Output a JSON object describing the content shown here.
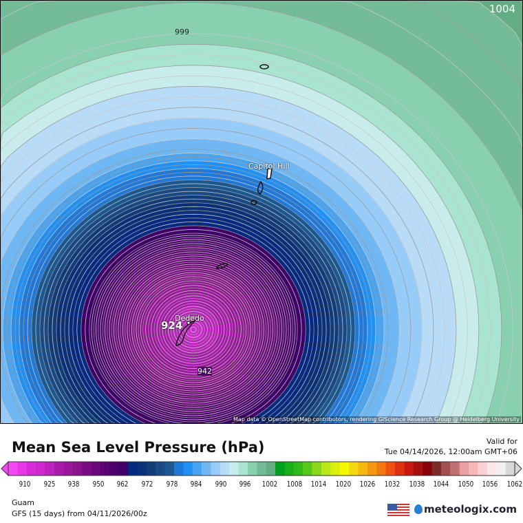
{
  "map": {
    "region": "Guam",
    "center_label": "924",
    "contour_labels": [
      {
        "text": "999"
      },
      {
        "text": "1004"
      },
      {
        "text": "942"
      }
    ],
    "places": [
      {
        "name": "Capitol Hill"
      },
      {
        "name": "Dededo"
      }
    ],
    "attribution": "Map data © OpenStreetMap contributors, rendering GIScience Research Group @ Heidelberg University"
  },
  "header": {
    "title": "Mean Sea Level Pressure (hPa)",
    "valid_label": "Valid for",
    "valid_time": "Tue 04/14/2026, 12:00am GMT+06"
  },
  "colorbar": {
    "ticks": [
      "910",
      "925",
      "938",
      "950",
      "962",
      "972",
      "978",
      "984",
      "990",
      "996",
      "1002",
      "1008",
      "1014",
      "1020",
      "1026",
      "1032",
      "1038",
      "1044",
      "1050",
      "1056",
      "1062"
    ],
    "colors": [
      "#f448f4",
      "#e836e8",
      "#d82ad8",
      "#cc28cc",
      "#bc22bc",
      "#aa1aaa",
      "#9a169a",
      "#8a128a",
      "#7a0c82",
      "#6a087a",
      "#5a0472",
      "#4c006c",
      "#400068",
      "#062a82",
      "#0a3078",
      "#123c78",
      "#1a4a84",
      "#1c5890",
      "#2078d8",
      "#2090f4",
      "#48a4f0",
      "#70b8f4",
      "#98ccf8",
      "#b8dcf8",
      "#c8ecec",
      "#a8e4d0",
      "#88d0b0",
      "#74bc98",
      "#64ac84",
      "#00a020",
      "#18b018",
      "#30bc18",
      "#58c818",
      "#88d818",
      "#b8e818",
      "#dcf010",
      "#f4f800",
      "#f4d810",
      "#f4b810",
      "#f49810",
      "#f47810",
      "#f05010",
      "#e03010",
      "#c81810",
      "#a81010",
      "#880008",
      "#7c2a2a",
      "#a05050",
      "#c07070",
      "#e8a0a0",
      "#f8b8b8",
      "#fcd0d0",
      "#fce8e8",
      "#f0f0f0",
      "#d8d8d8"
    ]
  },
  "footer": {
    "location": "Guam",
    "model_run": "GFS (15 days) from  04/11/2026/00z",
    "brand": "meteologix.com",
    "flag": "us-flag"
  }
}
